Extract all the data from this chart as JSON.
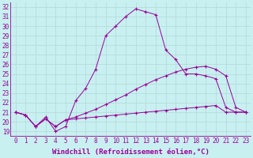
{
  "xlabel": "Windchill (Refroidissement éolien,°C)",
  "background_color": "#c8f0f0",
  "grid_color": "#b0d8d8",
  "line_color": "#990099",
  "xlim": [
    -0.5,
    23.5
  ],
  "ylim": [
    18.5,
    32.5
  ],
  "yticks": [
    19,
    20,
    21,
    22,
    23,
    24,
    25,
    26,
    27,
    28,
    29,
    30,
    31,
    32
  ],
  "xticks": [
    0,
    1,
    2,
    3,
    4,
    5,
    6,
    7,
    8,
    9,
    10,
    11,
    12,
    13,
    14,
    15,
    16,
    17,
    18,
    19,
    20,
    21,
    22,
    23
  ],
  "series1": [
    21.0,
    20.7,
    19.5,
    20.5,
    19.0,
    19.5,
    22.2,
    23.5,
    25.5,
    29.0,
    30.0,
    31.0,
    31.8,
    31.5,
    31.2,
    27.5,
    26.5,
    25.0,
    25.0,
    24.8,
    24.5,
    21.5,
    21.0,
    21.0
  ],
  "series2": [
    21.0,
    20.7,
    19.5,
    20.3,
    19.5,
    20.2,
    20.3,
    20.4,
    20.5,
    20.6,
    20.7,
    20.8,
    20.9,
    21.0,
    21.1,
    21.2,
    21.3,
    21.4,
    21.5,
    21.6,
    21.7,
    21.0,
    21.0,
    21.0
  ],
  "series3": [
    21.0,
    20.7,
    19.5,
    20.3,
    19.5,
    20.2,
    20.5,
    20.9,
    21.3,
    21.8,
    22.3,
    22.8,
    23.4,
    23.9,
    24.4,
    24.8,
    25.2,
    25.5,
    25.7,
    25.8,
    25.5,
    24.8,
    21.5,
    21.0
  ],
  "xlabel_fontsize": 6.5,
  "tick_fontsize": 5.5
}
